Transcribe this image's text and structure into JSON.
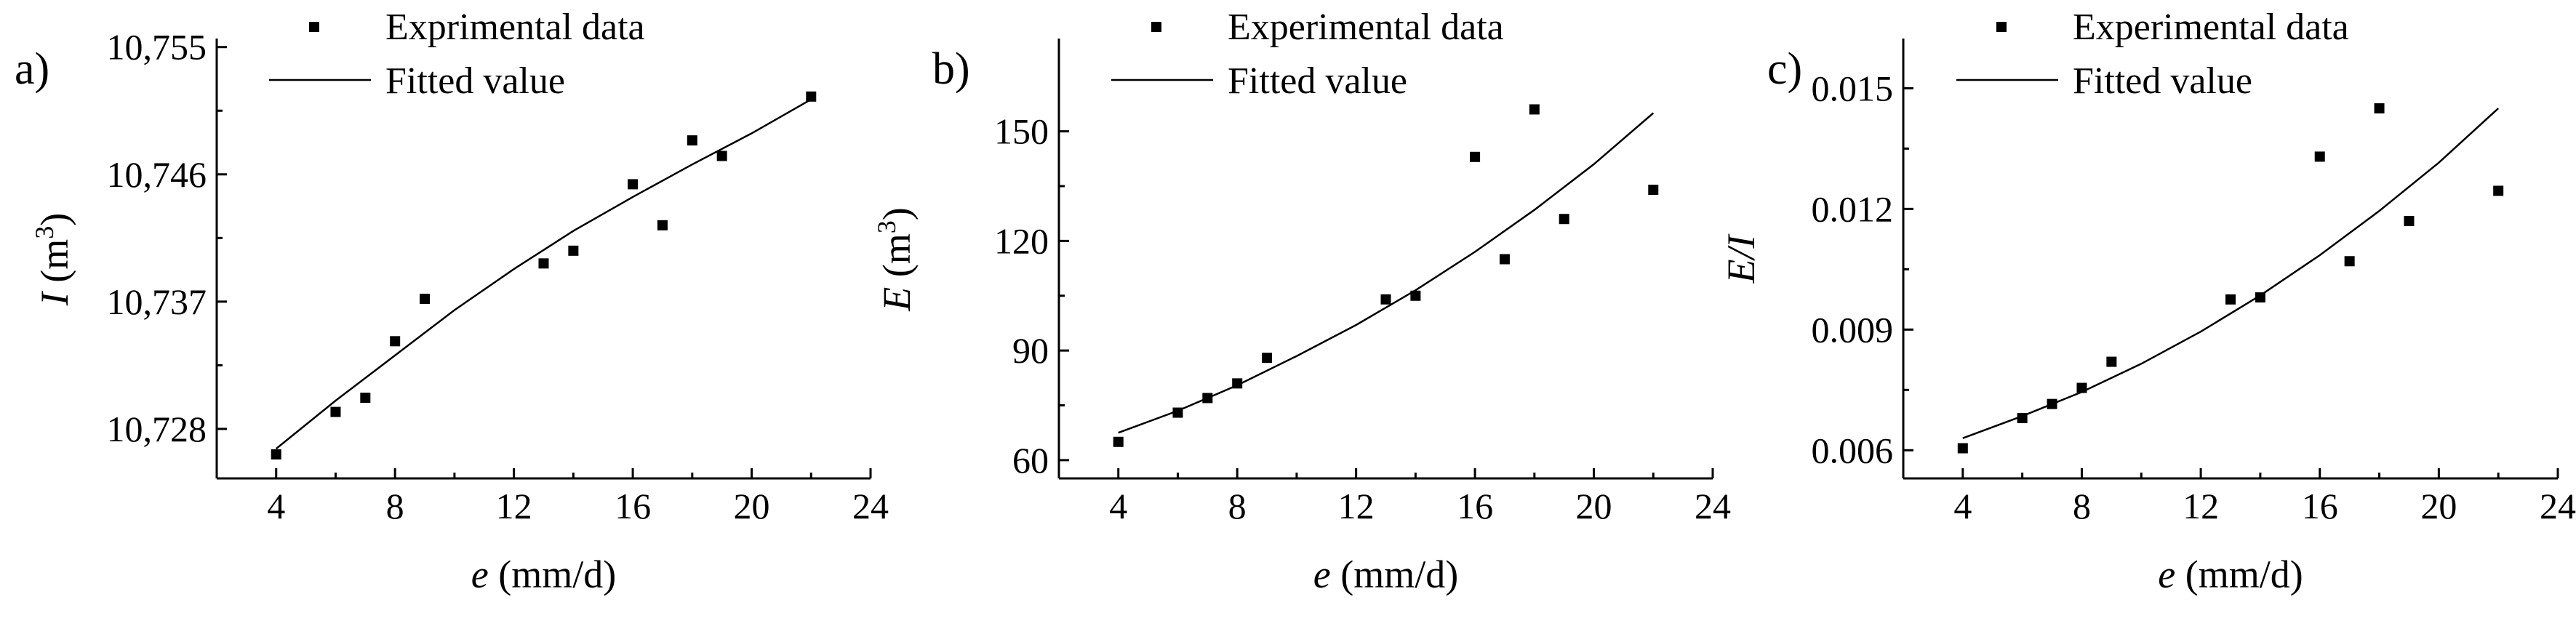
{
  "chart_data": [
    {
      "type": "scatter",
      "panel_label": "a)",
      "xlabel_var": "e",
      "xlabel_unit": " (mm/d)",
      "ylabel_var": "I",
      "ylabel_unit": " (m",
      "ylabel_sup": "3",
      "ylabel_close": ")",
      "xlim": [
        2,
        24
      ],
      "ylim": [
        10.7245,
        10.7555
      ],
      "xticks": [
        4,
        8,
        12,
        16,
        20,
        24
      ],
      "yticks": [
        10.728,
        10.737,
        10.746,
        10.755
      ],
      "ytick_labels": [
        "10,728",
        "10,737",
        "10,746",
        "10,755"
      ],
      "legend": {
        "points": "Exprimental data",
        "line": "Fitted value"
      },
      "series": [
        {
          "name": "Exprimental data",
          "x": [
            4,
            6,
            7,
            8,
            9,
            13,
            14,
            16,
            17,
            18,
            19,
            22
          ],
          "y": [
            10.7262,
            10.7292,
            10.7302,
            10.7342,
            10.7372,
            10.7397,
            10.7406,
            10.7453,
            10.7424,
            10.7484,
            10.7473,
            10.7515
          ]
        },
        {
          "name": "Fitted value",
          "x": [
            4,
            6,
            8,
            10,
            12,
            14,
            16,
            18,
            20,
            22
          ],
          "y": [
            10.7266,
            10.73,
            10.7332,
            10.7364,
            10.7393,
            10.742,
            10.7444,
            10.7467,
            10.7489,
            10.7513
          ]
        }
      ]
    },
    {
      "type": "scatter",
      "panel_label": "b)",
      "xlabel_var": "e",
      "xlabel_unit": " (mm/d)",
      "ylabel_var": "E",
      "ylabel_unit": " (m",
      "ylabel_sup": "3",
      "ylabel_close": ")",
      "xlim": [
        2,
        24
      ],
      "ylim": [
        55,
        175
      ],
      "xticks": [
        4,
        8,
        12,
        16,
        20,
        24
      ],
      "yticks": [
        60,
        90,
        120,
        150
      ],
      "ytick_labels": [
        "60",
        "90",
        "120",
        "150"
      ],
      "legend": {
        "points": "Experimental data",
        "line": "Fitted value"
      },
      "series": [
        {
          "name": "Experimental data",
          "x": [
            4,
            6,
            7,
            8,
            9,
            13,
            14,
            16,
            17,
            18,
            19,
            22
          ],
          "y": [
            65,
            73,
            77,
            81,
            88,
            104,
            105,
            143,
            115,
            156,
            126,
            134
          ]
        },
        {
          "name": "Fitted value",
          "x": [
            4,
            6,
            8,
            10,
            12,
            14,
            16,
            18,
            20,
            22
          ],
          "y": [
            67.5,
            73.5,
            80.5,
            88.5,
            97,
            106.5,
            117,
            128.5,
            141,
            155
          ]
        }
      ]
    },
    {
      "type": "scatter",
      "panel_label": "c)",
      "xlabel_var": "e",
      "xlabel_unit": " (mm/d)",
      "ylabel_var": "E/I",
      "ylabel_unit": "",
      "ylabel_sup": "",
      "ylabel_close": "",
      "xlim": [
        2,
        24
      ],
      "ylim": [
        0.0053,
        0.0162
      ],
      "xticks": [
        4,
        8,
        12,
        16,
        20,
        24
      ],
      "yticks": [
        0.006,
        0.009,
        0.012,
        0.015
      ],
      "ytick_labels": [
        "0.006",
        "0.009",
        "0.012",
        "0.015"
      ],
      "legend": {
        "points": "Experimental data",
        "line": "Fitted value"
      },
      "series": [
        {
          "name": "Experimental data",
          "x": [
            4,
            6,
            7,
            8,
            9,
            13,
            14,
            16,
            17,
            18,
            19,
            22
          ],
          "y": [
            0.00605,
            0.0068,
            0.00715,
            0.00755,
            0.0082,
            0.00975,
            0.0098,
            0.0133,
            0.0107,
            0.0145,
            0.0117,
            0.01245
          ]
        },
        {
          "name": "Fitted value",
          "x": [
            4,
            6,
            8,
            10,
            12,
            14,
            16,
            18,
            20,
            22
          ],
          "y": [
            0.0063,
            0.00685,
            0.00745,
            0.00815,
            0.00895,
            0.00985,
            0.01085,
            0.01195,
            0.01315,
            0.0145
          ]
        }
      ]
    }
  ]
}
